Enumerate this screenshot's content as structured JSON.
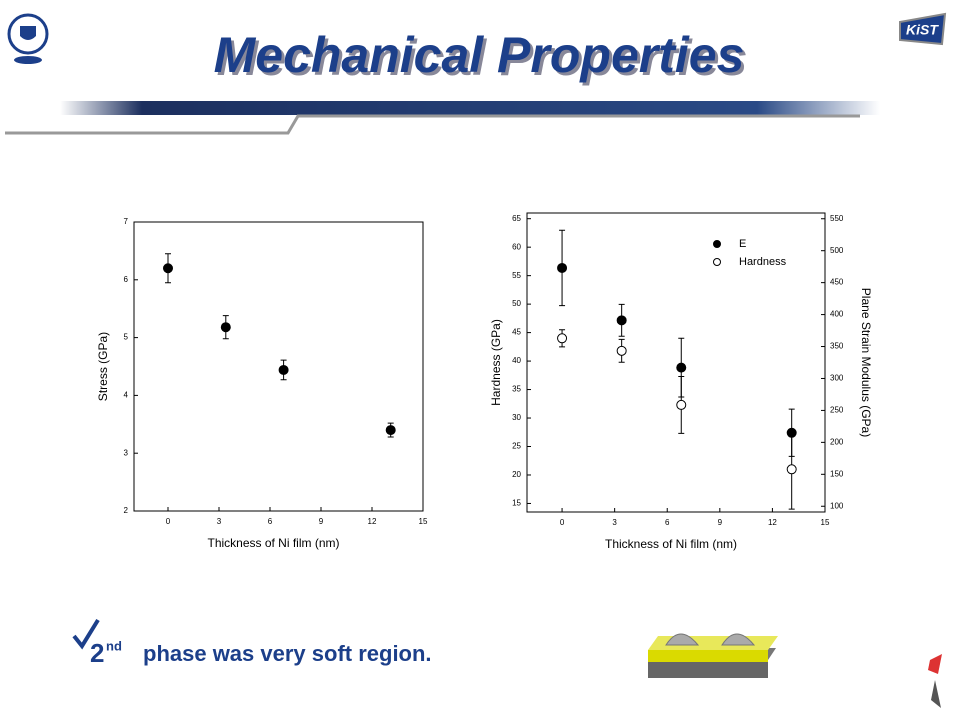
{
  "title": "Mechanical Properties",
  "logo_text": "KiST",
  "bullet": {
    "number": "2",
    "superscript": "nd",
    "text": "phase was very soft region."
  },
  "chart_data": [
    {
      "type": "scatter",
      "xlabel": "Thickness of Ni film (nm)",
      "ylabel": "Stress (GPa)",
      "xlim": [
        -2,
        15
      ],
      "xticks": [
        0,
        3,
        6,
        9,
        12,
        15
      ],
      "ylim": [
        2,
        7
      ],
      "yticks": [
        2,
        3,
        4,
        5,
        6,
        7
      ],
      "series": [
        {
          "color": "#000000",
          "marker": "filled",
          "x": [
            0,
            3.4,
            6.8,
            13.1
          ],
          "values": [
            6.2,
            5.18,
            4.44,
            3.4
          ],
          "errors": [
            0.25,
            0.2,
            0.17,
            0.12
          ]
        }
      ]
    },
    {
      "type": "scatter",
      "xlabel": "Thickness of Ni film (nm)",
      "ylabel": "Hardness (GPa)",
      "y2label": "Plane Strain Modulus (GPa)",
      "xlim": [
        -2,
        15
      ],
      "xticks": [
        0,
        3,
        6,
        9,
        12,
        15
      ],
      "ylim": [
        13.5,
        66
      ],
      "yticks": [
        15,
        20,
        25,
        30,
        35,
        40,
        45,
        50,
        55,
        60,
        65
      ],
      "y2lim": [
        91,
        559
      ],
      "y2ticks": [
        100,
        150,
        200,
        250,
        300,
        350,
        400,
        450,
        500,
        550
      ],
      "legend": "upper right",
      "series": [
        {
          "name": "E",
          "axis": "y2",
          "color": "#000000",
          "marker": "filled",
          "x": [
            0,
            3.4,
            6.8,
            13.1
          ],
          "values": [
            473,
            391,
            317,
            215
          ],
          "errors": [
            59,
            25,
            46,
            37
          ]
        },
        {
          "name": "Hardness",
          "color": "#000000",
          "marker": "open",
          "x": [
            0,
            3.4,
            6.8,
            13.1
          ],
          "values": [
            44,
            41.8,
            32.3,
            21
          ],
          "errors": [
            1.5,
            2,
            5,
            7
          ]
        }
      ]
    }
  ]
}
